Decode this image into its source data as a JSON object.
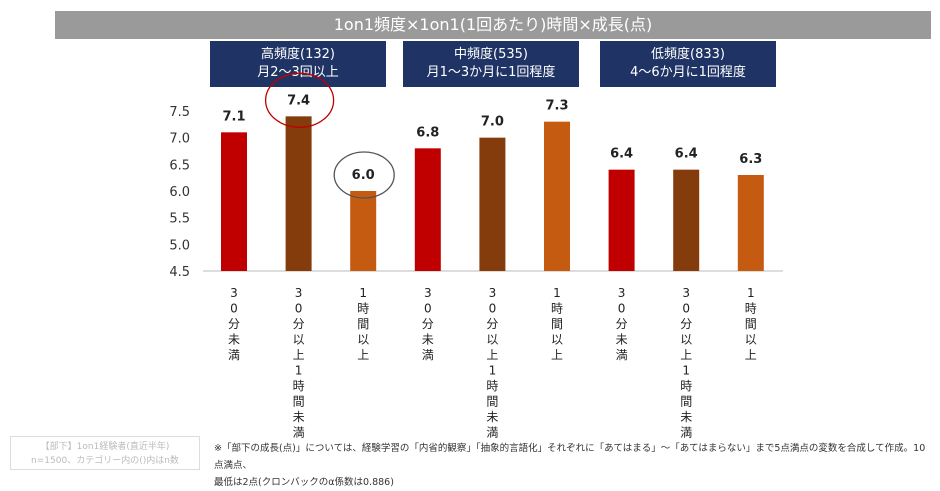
{
  "title": "1on1頻度×1on1(1回あたり)時間×成長(点)",
  "groups": [
    {
      "line1": "高頻度(132)",
      "line2": "月2～3回以上"
    },
    {
      "line1": "中頻度(535)",
      "line2": "月1～3か月に1回程度"
    },
    {
      "line1": "低頻度(833)",
      "line2": "4～6か月に1回程度"
    }
  ],
  "note": {
    "line1": "【部下】1on1経験者(直近半年)",
    "line2": "n=1500、カテゴリー内の()内はn数"
  },
  "footnote": {
    "line1": "※「部下の成長(点)」については、経験学習の「内省的観察」「抽象的言語化」それぞれに「あてはまる」～「あてはまらない」まで5点満点の変数を合成して作成。10点満点、",
    "line2": "最低は2点(クロンバックのα係数は0.886)"
  },
  "chart_data": {
    "type": "bar",
    "categories": [
      "30分未満",
      "30分以上1時間未満",
      "1時間以上",
      "30分未満",
      "30分以上1時間未満",
      "1時間以上",
      "30分未満",
      "30分以上1時間未満",
      "1時間以上"
    ],
    "values": [
      7.1,
      7.4,
      6.0,
      6.8,
      7.0,
      7.3,
      6.4,
      6.4,
      6.3
    ],
    "value_labels": [
      "7.1",
      "7.4",
      "6.0",
      "6.8",
      "7.0",
      "7.3",
      "6.4",
      "6.4",
      "6.3"
    ],
    "colors": [
      "#c00000",
      "#843c0c",
      "#c55a11",
      "#c00000",
      "#843c0c",
      "#c55a11",
      "#c00000",
      "#843c0c",
      "#c55a11"
    ],
    "yticks": [
      "4.5",
      "5.0",
      "5.5",
      "6.0",
      "6.5",
      "7.0",
      "7.5"
    ],
    "ylim": [
      4.5,
      7.5
    ],
    "grid": false,
    "highlights": [
      {
        "index": 1,
        "color": "#c00000"
      },
      {
        "index": 2,
        "color": "#555555"
      }
    ]
  }
}
